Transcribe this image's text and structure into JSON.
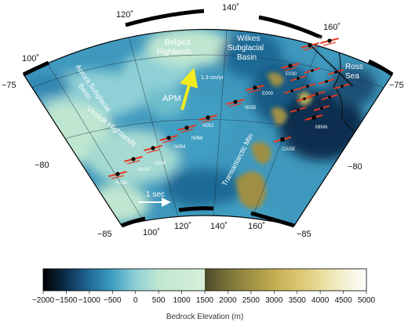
{
  "map": {
    "regions": {
      "aurora": [
        "Aurora Subglacial",
        "Basin"
      ],
      "belgica": [
        "Belgica",
        "Highlands"
      ],
      "wilkes": [
        "Wilkes",
        "Subglacial",
        "Basin"
      ],
      "ross": [
        "Ross",
        "Sea"
      ],
      "vostok": "Vostok Highlands",
      "transantarctic": "Transantarctic Mtn"
    },
    "longitudes": {
      "lon100": "100˚",
      "lon120": "120˚",
      "lon140": "140˚",
      "lon160": "160˚"
    },
    "latitudes": {
      "lat75": "−75",
      "lat80": "−80",
      "lat85": "−85"
    },
    "apm": {
      "label": "APM",
      "rate": "1.3 cm/yr"
    },
    "scale": {
      "label": "1 sec"
    },
    "stations": [
      {
        "id": "N132",
        "label": "N132"
      },
      {
        "id": "N119",
        "label": "N119"
      },
      {
        "id": "N100",
        "label": "N100"
      },
      {
        "id": "N084",
        "label": "N084"
      },
      {
        "id": "N068",
        "label": "N068"
      },
      {
        "id": "N052",
        "label": "N052"
      },
      {
        "id": "N035",
        "label": "N035"
      },
      {
        "id": "E000",
        "label": "E000"
      },
      {
        "id": "E030",
        "label": "E030"
      },
      {
        "id": "MINN",
        "label": "MINN"
      },
      {
        "id": "CASE",
        "label": "CASE"
      }
    ],
    "colors": {
      "deep": "#0b1e3a",
      "low": "#2a7fa8",
      "mid": "#7ec6c8",
      "high": "#c9e8d3",
      "rock": "#9e8f45",
      "split": "#b8ab60",
      "split_arrow": "#e53a1f",
      "apm_arrow": "#f2ec1f"
    }
  },
  "colorbar": {
    "title": "Bedrock Elevation (m)",
    "ticks": [
      "−2000",
      "−1500",
      "−1000",
      "−500",
      "0",
      "500",
      "1000",
      "1500",
      "2000",
      "2500",
      "3000",
      "3500",
      "4000",
      "4500",
      "5000"
    ],
    "stops": [
      "#000000",
      "#0d2f4f",
      "#1f6a96",
      "#3f9fc2",
      "#8fd0d6",
      "#bfe6d0",
      "#d8efd9",
      "#4b4b2a",
      "#7a7338",
      "#a09244",
      "#c2ad52",
      "#d9c56e",
      "#e8dc9a",
      "#f3efd0",
      "#ffffff"
    ]
  }
}
